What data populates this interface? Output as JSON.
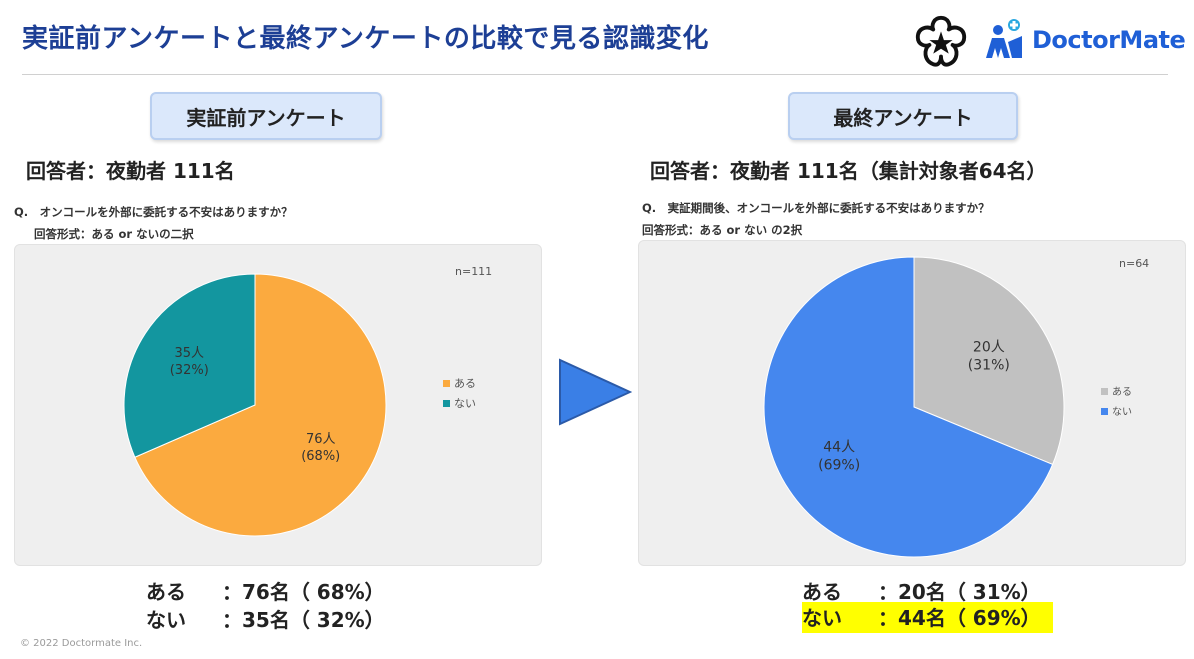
{
  "title": "実証前アンケートと最終アンケートの比較で見る認識変化",
  "logo": {
    "brand_name": "DoctorMate"
  },
  "before": {
    "badge": "実証前アンケート",
    "respondents": "回答者：夜勤者 111名",
    "question": "Q.　オンコールを外部に委託する不安はありますか？",
    "format": "回答形式：ある or ないの二択",
    "results": [
      {
        "label": "ある",
        "value": "：76名（ 68%）"
      },
      {
        "label": "ない",
        "value": "：35名（ 32%）"
      }
    ]
  },
  "after": {
    "badge": "最終アンケート",
    "respondents": "回答者：夜勤者 111名（集計対象者64名）",
    "question": "Q.　実証期間後、オンコールを外部に委託する不安はありますか？",
    "format": "回答形式：ある or ない の2択",
    "results": [
      {
        "label": "ある",
        "value": "：20名（ 31%）"
      },
      {
        "label": "ない",
        "value": "：44名（ 69%）"
      }
    ]
  },
  "chart_data": [
    {
      "type": "pie",
      "title": "実証前アンケート",
      "annotation": "n=111",
      "categories": [
        "ある",
        "ない"
      ],
      "values": [
        76,
        35
      ],
      "labels": [
        [
          "76人",
          "(68%)"
        ],
        [
          "35人",
          "(32%)"
        ]
      ],
      "colors": [
        "#fbaa3f",
        "#13969f"
      ],
      "legend": "right"
    },
    {
      "type": "pie",
      "title": "最終アンケート",
      "annotation": "n=64",
      "categories": [
        "ある",
        "ない"
      ],
      "values": [
        20,
        44
      ],
      "labels": [
        [
          "20人",
          "(31%)"
        ],
        [
          "44人",
          "(69%)"
        ]
      ],
      "colors": [
        "#c1c1c1",
        "#4587ee"
      ],
      "legend": "right"
    }
  ],
  "copyright": "© 2022 Doctormate Inc."
}
